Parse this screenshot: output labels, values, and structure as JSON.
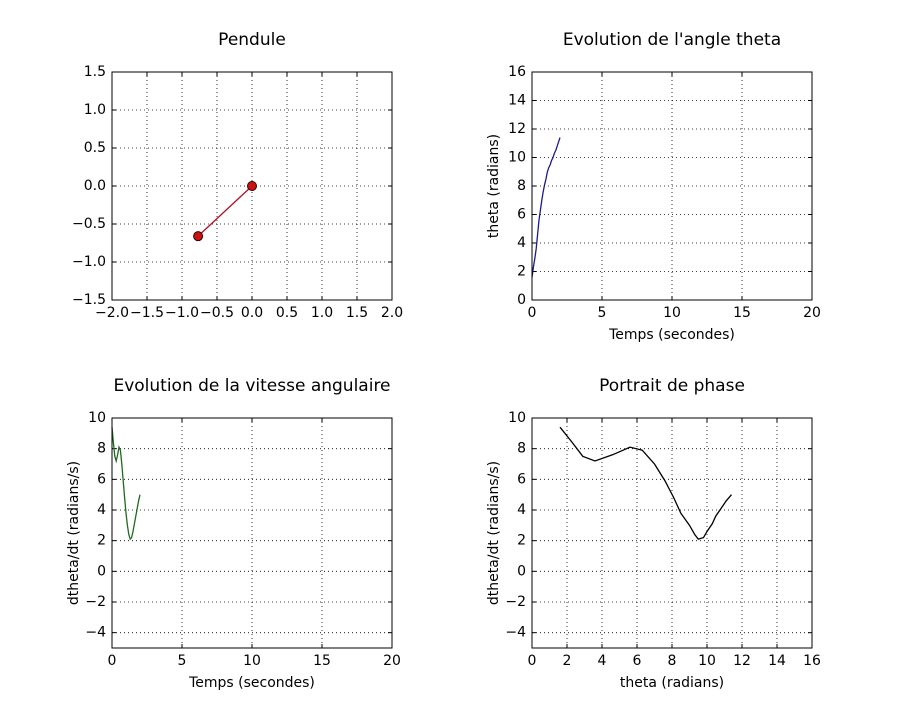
{
  "chart_data": [
    {
      "type": "line",
      "title": "Pendule",
      "x": [
        0,
        -0.77
      ],
      "series": [
        {
          "color": "#b0102a",
          "marker_color": "#cc1111",
          "values": [
            0,
            -0.66
          ]
        }
      ],
      "markers": true,
      "xlim": [
        -2,
        2
      ],
      "ylim": [
        -1.5,
        1.5
      ],
      "xticks": [
        {
          "value": -2,
          "label": "−2.0"
        },
        {
          "value": -1.5,
          "label": "−1.5"
        },
        {
          "value": -1,
          "label": "−1.0"
        },
        {
          "value": -0.5,
          "label": "−0.5"
        },
        {
          "value": 0,
          "label": "0.0"
        },
        {
          "value": 0.5,
          "label": "0.5"
        },
        {
          "value": 1,
          "label": "1.0"
        },
        {
          "value": 1.5,
          "label": "1.5"
        },
        {
          "value": 2,
          "label": "2.0"
        }
      ],
      "yticks": [
        {
          "value": -1.5,
          "label": "−1.5"
        },
        {
          "value": -1,
          "label": "−1.0"
        },
        {
          "value": -0.5,
          "label": "−0.5"
        },
        {
          "value": 0,
          "label": "0.0"
        },
        {
          "value": 0.5,
          "label": "0.5"
        },
        {
          "value": 1,
          "label": "1.0"
        },
        {
          "value": 1.5,
          "label": "1.5"
        }
      ],
      "grid": true
    },
    {
      "type": "line",
      "title": "Evolution de l'angle theta",
      "xlabel": "Temps (secondes)",
      "ylabel": "theta (radians)",
      "x": [
        0,
        0.1,
        0.2,
        0.3,
        0.4,
        0.5,
        0.6,
        0.7,
        0.8,
        0.9,
        1.0,
        1.1,
        1.2,
        1.3,
        1.4,
        1.5,
        1.6,
        1.7,
        1.8,
        1.9,
        2.0
      ],
      "series": [
        {
          "color": "#1a1a8c",
          "values": [
            1.6,
            2.3,
            2.9,
            3.6,
            4.6,
            5.6,
            6.3,
            7.0,
            7.6,
            8.1,
            8.5,
            9.0,
            9.3,
            9.5,
            9.8,
            10.0,
            10.3,
            10.5,
            10.8,
            11.1,
            11.4
          ]
        }
      ],
      "xlim": [
        0,
        20
      ],
      "ylim": [
        0,
        16
      ],
      "xticks": [
        0,
        5,
        10,
        15,
        20
      ],
      "yticks": [
        0,
        2,
        4,
        6,
        8,
        10,
        12,
        14,
        16
      ],
      "grid": true
    },
    {
      "type": "line",
      "title": "Evolution de la vitesse angulaire",
      "xlabel": "Temps (secondes)",
      "ylabel": "dtheta/dt (radians/s)",
      "x": [
        0,
        0.1,
        0.2,
        0.3,
        0.4,
        0.5,
        0.6,
        0.7,
        0.8,
        0.9,
        1.0,
        1.1,
        1.2,
        1.3,
        1.4,
        1.5,
        1.6,
        1.7,
        1.8,
        1.9,
        2.0
      ],
      "series": [
        {
          "color": "#1e6b1e",
          "values": [
            9.4,
            8.4,
            7.5,
            7.2,
            7.6,
            8.1,
            7.9,
            7.0,
            5.9,
            4.8,
            3.8,
            3.0,
            2.4,
            2.1,
            2.2,
            2.6,
            3.1,
            3.6,
            4.1,
            4.6,
            5.0
          ]
        }
      ],
      "xlim": [
        0,
        20
      ],
      "ylim": [
        -5,
        10
      ],
      "xticks": [
        0,
        5,
        10,
        15,
        20
      ],
      "yticks": [
        {
          "value": -4,
          "label": "−4"
        },
        {
          "value": -2,
          "label": "−2"
        },
        0,
        2,
        4,
        6,
        8,
        10
      ],
      "grid": true
    },
    {
      "type": "line",
      "title": "Portrait de phase",
      "xlabel": "theta (radians)",
      "ylabel": "dtheta/dt (radians/s)",
      "x": [
        1.6,
        2.3,
        2.9,
        3.6,
        4.6,
        5.6,
        6.3,
        7.0,
        7.6,
        8.1,
        8.5,
        9.0,
        9.3,
        9.5,
        9.8,
        10.0,
        10.3,
        10.5,
        10.8,
        11.1,
        11.4
      ],
      "series": [
        {
          "color": "#000000",
          "values": [
            9.4,
            8.4,
            7.5,
            7.2,
            7.6,
            8.1,
            7.9,
            7.0,
            5.9,
            4.8,
            3.8,
            3.0,
            2.4,
            2.1,
            2.2,
            2.6,
            3.1,
            3.6,
            4.1,
            4.6,
            5.0
          ]
        }
      ],
      "xlim": [
        0,
        16
      ],
      "ylim": [
        -5,
        10
      ],
      "xticks": [
        0,
        2,
        4,
        6,
        8,
        10,
        12,
        14,
        16
      ],
      "yticks": [
        {
          "value": -4,
          "label": "−4"
        },
        {
          "value": -2,
          "label": "−2"
        },
        0,
        2,
        4,
        6,
        8,
        10
      ],
      "grid": true
    }
  ]
}
